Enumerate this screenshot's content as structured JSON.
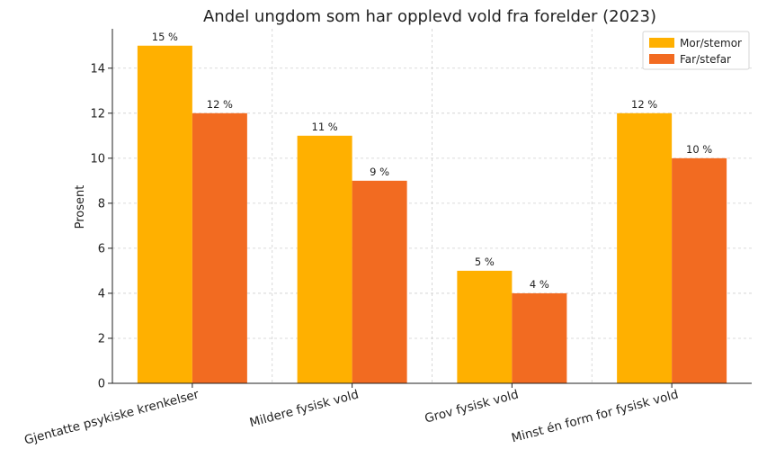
{
  "chart_data": {
    "type": "bar",
    "title": "Andel ungdom som har opplevd vold fra forelder (2023)",
    "xlabel": "",
    "ylabel": "Prosent",
    "categories": [
      "Gjentatte psykiske krenkelser",
      "Mildere fysisk vold",
      "Grov fysisk vold",
      "Minst én form for fysisk vold"
    ],
    "series": [
      {
        "name": "Mor/stemor",
        "values": [
          15,
          11,
          5,
          12
        ],
        "labels": [
          "15 %",
          "11 %",
          "5 %",
          "12 %"
        ],
        "color": "#FFB000"
      },
      {
        "name": "Far/stefar",
        "values": [
          12,
          9,
          4,
          10
        ],
        "labels": [
          "12 %",
          "9 %",
          "4 %",
          "10 %"
        ],
        "color": "#F26B21"
      }
    ],
    "ylim": [
      0,
      15.75
    ],
    "yticks": [
      0,
      2,
      4,
      6,
      8,
      10,
      12,
      14
    ],
    "grid": true,
    "legend": "top-right"
  }
}
